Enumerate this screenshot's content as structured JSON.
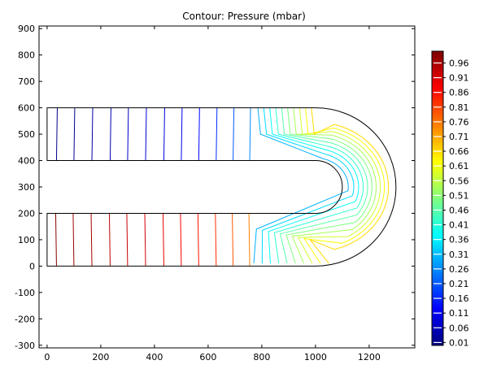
{
  "chart_data": {
    "type": "contour",
    "title": "Contour: Pressure (mbar)",
    "xlabel": "",
    "ylabel": "",
    "xlim": [
      -30,
      1370
    ],
    "ylim": [
      -310,
      910
    ],
    "x_ticks": [
      0,
      200,
      400,
      600,
      800,
      1000,
      1200
    ],
    "y_ticks": [
      -300,
      -200,
      -100,
      0,
      100,
      200,
      300,
      400,
      500,
      600,
      700,
      800,
      900
    ],
    "grid": false,
    "legend": "colorbar-right",
    "colorbar": {
      "min": 0.0,
      "max": 1.0,
      "levels": [
        0.01,
        0.06,
        0.11,
        0.16,
        0.21,
        0.26,
        0.31,
        0.36,
        0.41,
        0.46,
        0.51,
        0.56,
        0.61,
        0.66,
        0.71,
        0.76,
        0.81,
        0.86,
        0.91,
        0.96
      ]
    },
    "geometry": {
      "shape": "U-shaped channel",
      "upper_channel": {
        "x": [
          0,
          1000
        ],
        "y": [
          400,
          600
        ]
      },
      "lower_channel": {
        "x": [
          0,
          1000
        ],
        "y": [
          0,
          200
        ]
      },
      "bend_center": [
        1000,
        300
      ],
      "inner_radius": 100,
      "outer_radius": 300
    },
    "contour_lines": {
      "upper_channel_x": [
        35,
        100,
        167,
        235,
        300,
        367,
        435,
        500,
        565,
        630,
        693,
        755
      ],
      "upper_channel_levels": [
        0.01,
        0.02,
        0.04,
        0.05,
        0.07,
        0.08,
        0.09,
        0.11,
        0.13,
        0.17,
        0.21,
        0.26
      ],
      "lower_channel_x": [
        35,
        100,
        167,
        235,
        300,
        367,
        435,
        500,
        565,
        630,
        693,
        755
      ],
      "lower_channel_levels": [
        0.99,
        0.97,
        0.96,
        0.94,
        0.93,
        0.92,
        0.9,
        0.88,
        0.86,
        0.83,
        0.79,
        0.75
      ],
      "bend_levels": [
        0.3,
        0.34,
        0.38,
        0.42,
        0.46,
        0.5,
        0.54,
        0.58,
        0.62,
        0.66
      ]
    }
  }
}
